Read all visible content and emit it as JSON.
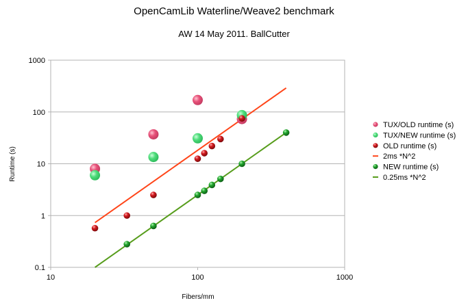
{
  "chart_data": {
    "type": "scatter",
    "title": "OpenCamLib Waterline/Weave2 benchmark",
    "subtitle": "AW 14 May 2011. BallCutter",
    "xlabel": "Fibers/mm",
    "ylabel": "Runtime (s)",
    "xscale": "log",
    "yscale": "log",
    "xlim": [
      10,
      1000
    ],
    "ylim": [
      0.1,
      1000
    ],
    "x_tick_labels": [
      "10",
      "100",
      "1000"
    ],
    "y_tick_labels": [
      "0.1",
      "1",
      "10",
      "100",
      "1000"
    ],
    "grid": "horizontal",
    "legend_position": "right",
    "series": [
      {
        "name": "TUX/OLD runtime (s)",
        "kind": "points",
        "marker": "sphere-large",
        "color": "#e8527a",
        "x": [
          20,
          50,
          100,
          200
        ],
        "y": [
          8,
          37,
          170,
          73
        ]
      },
      {
        "name": "TUX/NEW runtime (s)",
        "kind": "points",
        "marker": "sphere-large",
        "color": "#4fdd7b",
        "x": [
          20,
          50,
          100,
          200
        ],
        "y": [
          6,
          13.5,
          31,
          87
        ]
      },
      {
        "name": "OLD runtime (s)",
        "kind": "points",
        "marker": "sphere-small",
        "color": "#c8171c",
        "x": [
          20,
          33,
          50,
          100,
          111,
          125,
          143,
          200
        ],
        "y": [
          0.57,
          1.0,
          2.5,
          12.5,
          16,
          22,
          30,
          75
        ]
      },
      {
        "name": "2ms *N^2",
        "kind": "line",
        "color": "#ff4519",
        "x": [
          20,
          400
        ],
        "y": [
          0.73,
          290
        ]
      },
      {
        "name": "NEW runtime (s)",
        "kind": "points",
        "marker": "sphere-small",
        "color": "#1e9a2a",
        "x": [
          33,
          50,
          100,
          111,
          125,
          143,
          200,
          400
        ],
        "y": [
          0.28,
          0.63,
          2.5,
          3.0,
          3.9,
          5.1,
          10,
          40
        ]
      },
      {
        "name": "0.25ms *N^2",
        "kind": "line",
        "color": "#579d1c",
        "x": [
          20,
          400
        ],
        "y": [
          0.1,
          40
        ]
      }
    ]
  }
}
